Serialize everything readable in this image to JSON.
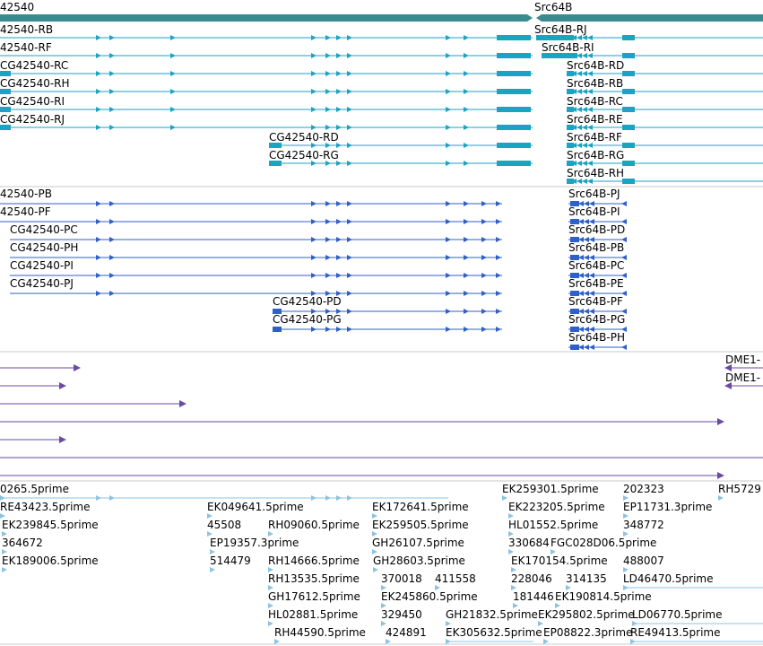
{
  "colors": {
    "gene": "#3a8a8f",
    "mrna": "#1aa3c3",
    "protein": "#2f5fc8",
    "insertion": "#6a4aa3",
    "est": "#8ec3e0",
    "divider": "#c8c8c8"
  },
  "genes": {
    "left_label": "42540",
    "right_label": "Src64B"
  },
  "mrna_labels": {
    "left": [
      "42540-RB",
      "42540-RF",
      "CG42540-RC",
      "CG42540-RH",
      "CG42540-RI",
      "CG42540-RJ",
      "CG42540-RD",
      "CG42540-RG"
    ],
    "right": [
      "Src64B-RJ",
      "Src64B-RI",
      "Src64B-RD",
      "Src64B-RB",
      "Src64B-RC",
      "Src64B-RE",
      "Src64B-RF",
      "Src64B-RG",
      "Src64B-RH"
    ]
  },
  "protein_labels": {
    "left": [
      "42540-PB",
      "42540-PF",
      "CG42540-PC",
      "CG42540-PH",
      "CG42540-PI",
      "CG42540-PJ",
      "CG42540-PD",
      "CG42540-PG"
    ],
    "right": [
      "Src64B-PJ",
      "Src64B-PI",
      "Src64B-PD",
      "Src64B-PB",
      "Src64B-PC",
      "Src64B-PE",
      "Src64B-PF",
      "Src64B-PG",
      "Src64B-PH"
    ]
  },
  "insertion_labels": [
    "DME1-",
    "DME1-"
  ],
  "est_labels": [
    "0265.5prime",
    "EK259301.5prime",
    "202323",
    "RH5729",
    "RE43423.5prime",
    "EK049641.5prime",
    "EK172641.5prime",
    "EK223205.5prime",
    "EP11731.3prime",
    "EK239845.5prime",
    "45508",
    "RH09060.5prime",
    "EK259505.5prime",
    "HL01552.5prime",
    "348772",
    "364672",
    "EP19357.3prime",
    "GH26107.5prime",
    "330684",
    "FGC028D06.5prime",
    "EK189006.5prime",
    "514479",
    "RH14666.5prime",
    "GH28603.5prime",
    "EK170154.5prime",
    "488007",
    "RH13535.5prime",
    "370018",
    "411558",
    "228046",
    "314135",
    "LD46470.5prime",
    "GH17612.5prime",
    "EK245860.5prime",
    "181446",
    "EK190814.5prime",
    "HL02881.5prime",
    "329450",
    "GH21832.5prime",
    "EK295802.5prime",
    "LD06770.5prime",
    "RH44590.5prime",
    "424891",
    "EK305632.5prime",
    "EP08822.3prime",
    "RE49413.5prime"
  ]
}
